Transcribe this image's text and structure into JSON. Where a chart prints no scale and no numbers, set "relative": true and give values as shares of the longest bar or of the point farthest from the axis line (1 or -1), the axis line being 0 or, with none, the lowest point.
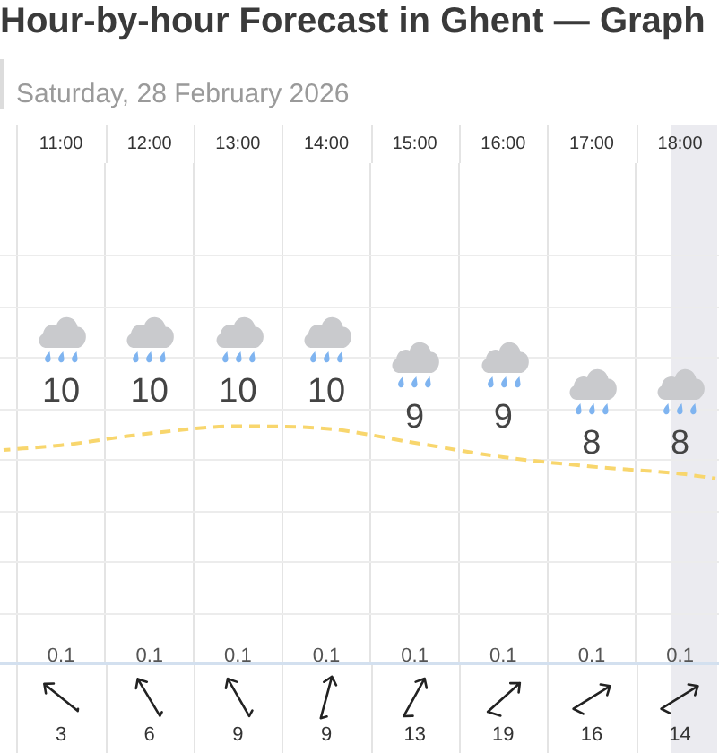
{
  "chart_data": [
    {
      "type": "line",
      "title": "Hour-by-hour Forecast in Ghent — Graph",
      "subtitle": "Saturday, 28 February 2026",
      "relative": true,
      "xlim": [
        10.33,
        18.42
      ],
      "xticks": [
        {
          "value": 10.5,
          "label": null
        },
        {
          "value": 11,
          "label": "11:00"
        },
        {
          "value": 11.5,
          "label": null
        },
        {
          "value": 12,
          "label": "12:00"
        },
        {
          "value": 12.5,
          "label": null
        },
        {
          "value": 13,
          "label": "13:00"
        },
        {
          "value": 13.5,
          "label": null
        },
        {
          "value": 14,
          "label": "14:00"
        },
        {
          "value": 14.5,
          "label": null
        },
        {
          "value": 15,
          "label": "15:00"
        },
        {
          "value": 15.5,
          "label": null
        },
        {
          "value": 16,
          "label": "16:00"
        },
        {
          "value": 16.5,
          "label": null
        },
        {
          "value": 17,
          "label": "17:00"
        },
        {
          "value": 17.5,
          "label": null
        },
        {
          "value": 18,
          "label": "18:00"
        }
      ],
      "grid": true,
      "bands": [
        {
          "axis": "x",
          "from": 17.9,
          "to": 18.42,
          "color": "#ebebf0"
        }
      ],
      "series": [
        {
          "type": "line",
          "x": [
            10.35,
            11,
            12,
            13,
            14,
            15,
            16,
            17,
            18,
            18.4
          ],
          "values": [
            0.9,
            0.92,
            0.97,
            1.0,
            0.99,
            0.93,
            0.87,
            0.83,
            0.8,
            0.78
          ],
          "color": "#f8d66d",
          "line_style": "dashed"
        }
      ]
    },
    {
      "type": "other",
      "categories": [
        null,
        null,
        null,
        null,
        null,
        null,
        null,
        null
      ],
      "values": [
        10,
        10,
        10,
        10,
        9,
        9,
        8,
        8
      ],
      "data_labels": true
    },
    {
      "type": "other",
      "categories": [
        null,
        null,
        null,
        null,
        null,
        null,
        null,
        null
      ],
      "values": [
        0.1,
        0.1,
        0.1,
        0.1,
        0.1,
        0.1,
        0.1,
        0.1
      ],
      "data_labels": true
    },
    {
      "type": "other",
      "categories": [
        null,
        null,
        null,
        null,
        null,
        null,
        null,
        null
      ],
      "values": [
        3,
        6,
        9,
        9,
        13,
        19,
        16,
        14
      ],
      "data_labels": true
    }
  ]
}
